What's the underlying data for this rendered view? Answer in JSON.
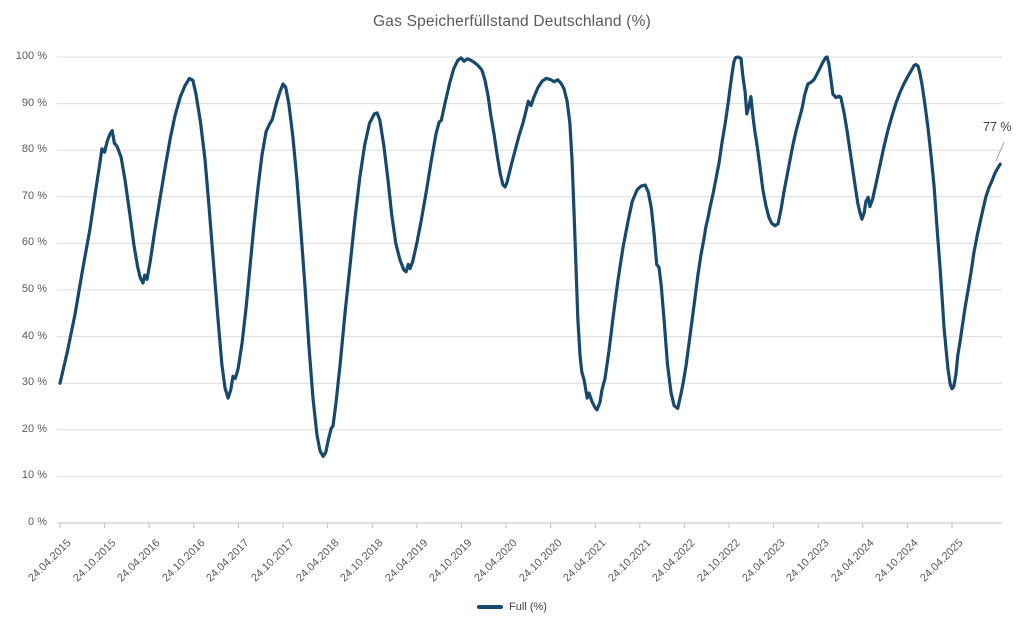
{
  "colors": {
    "background": "#ffffff",
    "grid": "#dcdcdc",
    "axis": "#bfbfbf",
    "text_muted": "#595959",
    "text_dark": "#404040",
    "leader_line": "#a6a6a6"
  },
  "chart_data": {
    "type": "line",
    "title": "Gas Speicherfüllstand Deutschland (%)",
    "grid": "horizontal",
    "legend_position": "bottom-center",
    "end_label": "77 %",
    "y_axis": {
      "range": [
        0,
        100
      ],
      "ticks": [
        0,
        10,
        20,
        30,
        40,
        50,
        60,
        70,
        80,
        90,
        100
      ],
      "tick_labels": [
        "0 %",
        "10 %",
        "20 %",
        "30 %",
        "40 %",
        "50 %",
        "60 %",
        "70 %",
        "80 %",
        "90 %",
        "100 %"
      ]
    },
    "x_axis": {
      "tick_label_rotation_deg": -45,
      "tick_labels": [
        "24.04.2015",
        "24.10.2015",
        "24.04.2016",
        "24.10.2016",
        "24.04.2017",
        "24.10.2017",
        "24.04.2018",
        "24.10.2018",
        "24.04.2019",
        "24.10.2019",
        "24.04.2020",
        "24.10.2020",
        "24.04.2021",
        "24.10.2021",
        "24.04.2022",
        "24.10.2022",
        "24.04.2023",
        "24.10.2023",
        "24.04.2024",
        "24.10.2024",
        "24.04.2025"
      ]
    },
    "series": [
      {
        "name": "Full (%)",
        "color": "#17496d",
        "x_unit": "half-year index from 24.04.2015 (0 = 24.04.2015, 1 = 24.10.2015, ...)",
        "points": [
          [
            0,
            30
          ],
          [
            0.17,
            37
          ],
          [
            0.34,
            45
          ],
          [
            0.5,
            54
          ],
          [
            0.67,
            63
          ],
          [
            0.81,
            72
          ],
          [
            0.9,
            77.5
          ],
          [
            0.94,
            80.3
          ],
          [
            1.0,
            79.6
          ],
          [
            1.06,
            82
          ],
          [
            1.12,
            83.5
          ],
          [
            1.17,
            84.2
          ],
          [
            1.22,
            81.5
          ],
          [
            1.28,
            80.8
          ],
          [
            1.37,
            78.5
          ],
          [
            1.46,
            73.5
          ],
          [
            1.57,
            66
          ],
          [
            1.66,
            59.5
          ],
          [
            1.74,
            55
          ],
          [
            1.8,
            52.6
          ],
          [
            1.86,
            51.5
          ],
          [
            1.9,
            53.2
          ],
          [
            1.95,
            52.3
          ],
          [
            2.02,
            56
          ],
          [
            2.13,
            63
          ],
          [
            2.24,
            69.5
          ],
          [
            2.36,
            76.5
          ],
          [
            2.47,
            82.5
          ],
          [
            2.58,
            87.5
          ],
          [
            2.7,
            91.5
          ],
          [
            2.8,
            93.8
          ],
          [
            2.9,
            95.4
          ],
          [
            2.98,
            95
          ],
          [
            3.05,
            92
          ],
          [
            3.15,
            86
          ],
          [
            3.25,
            78
          ],
          [
            3.34,
            68
          ],
          [
            3.44,
            56
          ],
          [
            3.54,
            44
          ],
          [
            3.63,
            34
          ],
          [
            3.7,
            29
          ],
          [
            3.77,
            26.8
          ],
          [
            3.83,
            28.6
          ],
          [
            3.88,
            31.5
          ],
          [
            3.93,
            31
          ],
          [
            3.99,
            33
          ],
          [
            4.08,
            38.5
          ],
          [
            4.17,
            46
          ],
          [
            4.26,
            55
          ],
          [
            4.35,
            64
          ],
          [
            4.44,
            72
          ],
          [
            4.53,
            79
          ],
          [
            4.62,
            84
          ],
          [
            4.7,
            85.6
          ],
          [
            4.76,
            86.6
          ],
          [
            4.85,
            90
          ],
          [
            4.93,
            92.5
          ],
          [
            5.0,
            94.2
          ],
          [
            5.06,
            93.5
          ],
          [
            5.13,
            90
          ],
          [
            5.22,
            83
          ],
          [
            5.31,
            74
          ],
          [
            5.4,
            63
          ],
          [
            5.49,
            51
          ],
          [
            5.58,
            38
          ],
          [
            5.67,
            27
          ],
          [
            5.76,
            19
          ],
          [
            5.83,
            15.5
          ],
          [
            5.9,
            14.3
          ],
          [
            5.96,
            15.2
          ],
          [
            6.02,
            18
          ],
          [
            6.08,
            20.3
          ],
          [
            6.12,
            20.8
          ],
          [
            6.19,
            26
          ],
          [
            6.28,
            34
          ],
          [
            6.39,
            45
          ],
          [
            6.5,
            55
          ],
          [
            6.61,
            65
          ],
          [
            6.72,
            74
          ],
          [
            6.83,
            81
          ],
          [
            6.94,
            85.8
          ],
          [
            7.05,
            87.8
          ],
          [
            7.11,
            88
          ],
          [
            7.17,
            86.5
          ],
          [
            7.26,
            81
          ],
          [
            7.35,
            74
          ],
          [
            7.44,
            66
          ],
          [
            7.53,
            60
          ],
          [
            7.62,
            56.5
          ],
          [
            7.71,
            54.3
          ],
          [
            7.76,
            53.9
          ],
          [
            7.81,
            55.5
          ],
          [
            7.85,
            54.6
          ],
          [
            7.91,
            56.2
          ],
          [
            8.0,
            60
          ],
          [
            8.1,
            65
          ],
          [
            8.21,
            71
          ],
          [
            8.32,
            77.5
          ],
          [
            8.43,
            83.5
          ],
          [
            8.5,
            86
          ],
          [
            8.55,
            86.4
          ],
          [
            8.63,
            90
          ],
          [
            8.74,
            94.5
          ],
          [
            8.83,
            97.5
          ],
          [
            8.92,
            99.3
          ],
          [
            8.99,
            99.8
          ],
          [
            9.06,
            99.1
          ],
          [
            9.13,
            99.6
          ],
          [
            9.19,
            99.4
          ],
          [
            9.28,
            98.9
          ],
          [
            9.37,
            98.2
          ],
          [
            9.46,
            97.2
          ],
          [
            9.53,
            95
          ],
          [
            9.6,
            91.5
          ],
          [
            9.66,
            87.5
          ],
          [
            9.73,
            83.5
          ],
          [
            9.8,
            79
          ],
          [
            9.87,
            75
          ],
          [
            9.93,
            72.6
          ],
          [
            9.98,
            72.1
          ],
          [
            10.02,
            73
          ],
          [
            10.11,
            76.5
          ],
          [
            10.2,
            79.8
          ],
          [
            10.29,
            83
          ],
          [
            10.38,
            85.8
          ],
          [
            10.45,
            88.5
          ],
          [
            10.5,
            90.5
          ],
          [
            10.56,
            89.6
          ],
          [
            10.63,
            91.5
          ],
          [
            10.72,
            93.5
          ],
          [
            10.81,
            94.8
          ],
          [
            10.9,
            95.4
          ],
          [
            10.99,
            95.2
          ],
          [
            11.08,
            94.7
          ],
          [
            11.16,
            95.1
          ],
          [
            11.23,
            94.4
          ],
          [
            11.3,
            93.2
          ],
          [
            11.37,
            90.5
          ],
          [
            11.43,
            86
          ],
          [
            11.48,
            78
          ],
          [
            11.52,
            68
          ],
          [
            11.57,
            55
          ],
          [
            11.61,
            44
          ],
          [
            11.66,
            36
          ],
          [
            11.7,
            32.4
          ],
          [
            11.75,
            30.7
          ],
          [
            11.82,
            26.8
          ],
          [
            11.86,
            27.9
          ],
          [
            11.93,
            26
          ],
          [
            12.0,
            24.7
          ],
          [
            12.04,
            24.3
          ],
          [
            12.11,
            26
          ],
          [
            12.15,
            28.5
          ],
          [
            12.22,
            31
          ],
          [
            12.31,
            37
          ],
          [
            12.4,
            44
          ],
          [
            12.51,
            52
          ],
          [
            12.62,
            59
          ],
          [
            12.73,
            64.5
          ],
          [
            12.83,
            69
          ],
          [
            12.94,
            71.5
          ],
          [
            13.03,
            72.3
          ],
          [
            13.12,
            72.5
          ],
          [
            13.19,
            71
          ],
          [
            13.26,
            67.5
          ],
          [
            13.32,
            62
          ],
          [
            13.38,
            55.5
          ],
          [
            13.43,
            54.8
          ],
          [
            13.48,
            51
          ],
          [
            13.55,
            43
          ],
          [
            13.62,
            34
          ],
          [
            13.7,
            28
          ],
          [
            13.77,
            25.2
          ],
          [
            13.85,
            24.6
          ],
          [
            13.92,
            27.5
          ],
          [
            13.97,
            30
          ],
          [
            14.04,
            34
          ],
          [
            14.13,
            40.5
          ],
          [
            14.22,
            47
          ],
          [
            14.3,
            53
          ],
          [
            14.37,
            57.5
          ],
          [
            14.44,
            61
          ],
          [
            14.48,
            63.5
          ],
          [
            14.53,
            65.5
          ],
          [
            14.57,
            67.5
          ],
          [
            14.64,
            70.5
          ],
          [
            14.71,
            74
          ],
          [
            14.78,
            77.5
          ],
          [
            14.84,
            81.5
          ],
          [
            14.91,
            85.5
          ],
          [
            14.98,
            90
          ],
          [
            15.02,
            93
          ],
          [
            15.07,
            96.5
          ],
          [
            15.11,
            99
          ],
          [
            15.15,
            99.9
          ],
          [
            15.2,
            100
          ],
          [
            15.27,
            99.7
          ],
          [
            15.31,
            96
          ],
          [
            15.36,
            92.5
          ],
          [
            15.4,
            87.8
          ],
          [
            15.45,
            89.5
          ],
          [
            15.49,
            91.5
          ],
          [
            15.54,
            87
          ],
          [
            15.58,
            84
          ],
          [
            15.63,
            81
          ],
          [
            15.7,
            76
          ],
          [
            15.76,
            71.5
          ],
          [
            15.83,
            68
          ],
          [
            15.9,
            65.5
          ],
          [
            15.96,
            64.3
          ],
          [
            16.03,
            63.8
          ],
          [
            16.1,
            64.2
          ],
          [
            16.17,
            67.5
          ],
          [
            16.23,
            71
          ],
          [
            16.3,
            74.5
          ],
          [
            16.37,
            78
          ],
          [
            16.43,
            81
          ],
          [
            16.5,
            84
          ],
          [
            16.57,
            86.5
          ],
          [
            16.64,
            89
          ],
          [
            16.7,
            92
          ],
          [
            16.77,
            94.2
          ],
          [
            16.84,
            94.6
          ],
          [
            16.91,
            95.2
          ],
          [
            16.97,
            96.3
          ],
          [
            17.04,
            97.6
          ],
          [
            17.11,
            99
          ],
          [
            17.17,
            99.9
          ],
          [
            17.2,
            100
          ],
          [
            17.24,
            98.5
          ],
          [
            17.29,
            95
          ],
          [
            17.33,
            92
          ],
          [
            17.4,
            91.3
          ],
          [
            17.47,
            91.6
          ],
          [
            17.51,
            91.3
          ],
          [
            17.58,
            88
          ],
          [
            17.65,
            84
          ],
          [
            17.71,
            80
          ],
          [
            17.78,
            75.5
          ],
          [
            17.85,
            71
          ],
          [
            17.89,
            68.5
          ],
          [
            17.94,
            66.5
          ],
          [
            17.98,
            65.2
          ],
          [
            18.03,
            66.5
          ],
          [
            18.07,
            69
          ],
          [
            18.12,
            69.9
          ],
          [
            18.16,
            67.9
          ],
          [
            18.22,
            69.5
          ],
          [
            18.3,
            73
          ],
          [
            18.39,
            77
          ],
          [
            18.48,
            81
          ],
          [
            18.57,
            84.5
          ],
          [
            18.66,
            87.5
          ],
          [
            18.74,
            90
          ],
          [
            18.83,
            92.3
          ],
          [
            18.92,
            94.2
          ],
          [
            19.01,
            95.8
          ],
          [
            19.08,
            97
          ],
          [
            19.15,
            98.2
          ],
          [
            19.19,
            98.4
          ],
          [
            19.24,
            98
          ],
          [
            19.28,
            96.5
          ],
          [
            19.33,
            94
          ],
          [
            19.39,
            90
          ],
          [
            19.46,
            85
          ],
          [
            19.53,
            79
          ],
          [
            19.6,
            72
          ],
          [
            19.66,
            64
          ],
          [
            19.73,
            55
          ],
          [
            19.78,
            48
          ],
          [
            19.82,
            42
          ],
          [
            19.87,
            37
          ],
          [
            19.91,
            33
          ],
          [
            19.96,
            29.8
          ],
          [
            20.0,
            28.8
          ],
          [
            20.04,
            29.3
          ],
          [
            20.09,
            32
          ],
          [
            20.13,
            36
          ],
          [
            20.18,
            38.8
          ],
          [
            20.22,
            41.5
          ],
          [
            20.29,
            46
          ],
          [
            20.36,
            50
          ],
          [
            20.43,
            54
          ],
          [
            20.49,
            58
          ],
          [
            20.56,
            61.5
          ],
          [
            20.63,
            64.5
          ],
          [
            20.7,
            67.5
          ],
          [
            20.76,
            70
          ],
          [
            20.83,
            72
          ],
          [
            20.9,
            73.5
          ],
          [
            20.96,
            75
          ],
          [
            21.03,
            76.2
          ],
          [
            21.08,
            77
          ]
        ]
      }
    ]
  }
}
